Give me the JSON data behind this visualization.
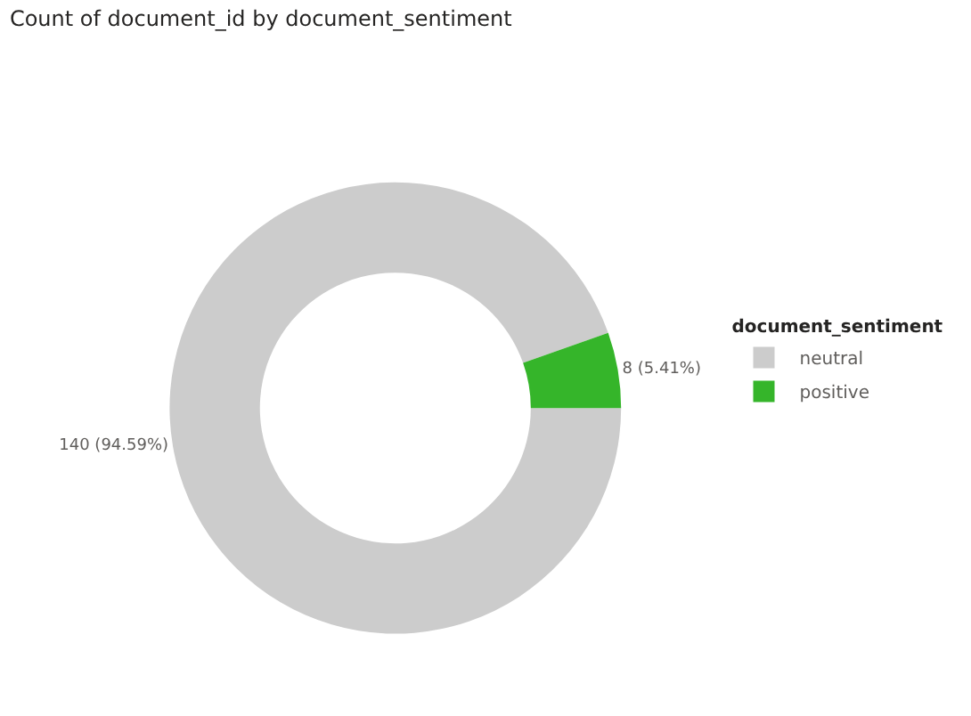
{
  "chart_data": {
    "type": "donut",
    "title": "Count of document_id by document_sentiment",
    "legend_title": "document_sentiment",
    "categories": [
      "neutral",
      "positive"
    ],
    "values": [
      140,
      8
    ],
    "colors": [
      "#cccccc",
      "#35b52a"
    ],
    "value_labels": [
      "140 (94.59%)",
      "8 (5.41%)"
    ],
    "legend": "right"
  }
}
